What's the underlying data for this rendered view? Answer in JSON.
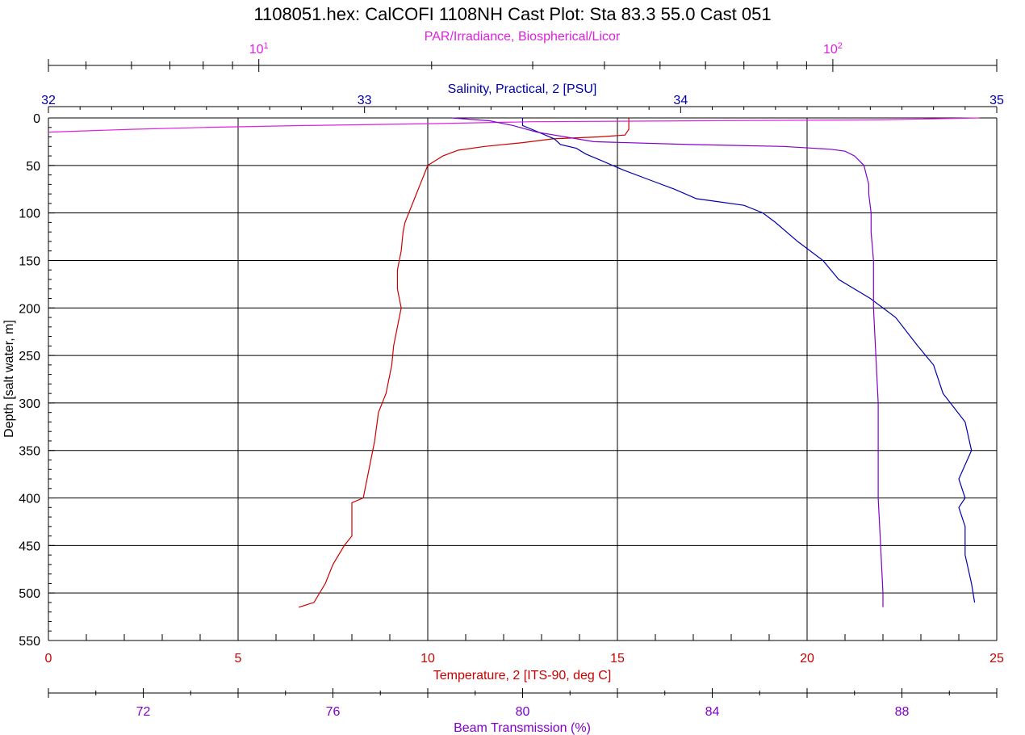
{
  "chart_data": {
    "type": "line",
    "title": "1108051.hex: CalCOFI 1108NH Cast Plot: Sta 83.3  55.0  Cast 051",
    "colors": {
      "temperature": "#cc0000",
      "salinity": "#0000aa",
      "par": "#e020e0",
      "beam": "#8000cc",
      "grid": "#000000"
    },
    "y_axis": {
      "label": "Depth [salt water, m]",
      "range": [
        0,
        550
      ],
      "ticks": [
        0,
        50,
        100,
        150,
        200,
        250,
        300,
        350,
        400,
        450,
        500,
        550
      ],
      "reversed": true
    },
    "par_axis": {
      "label": "PAR/Irradiance, Biospherical/Licor",
      "scale": "log",
      "range": [
        4.3,
        193
      ],
      "ticks": [
        {
          "value": 10,
          "base": "10",
          "exp": "1"
        },
        {
          "value": 100,
          "base": "10",
          "exp": "2"
        }
      ]
    },
    "salinity_axis": {
      "label": "Salinity, Practical, 2 [PSU]",
      "range": [
        32,
        35
      ],
      "ticks": [
        "32",
        "33",
        "34",
        "35"
      ]
    },
    "temperature_axis": {
      "label": "Temperature, 2 [ITS-90, deg C]",
      "range": [
        0,
        25
      ],
      "ticks": [
        "0",
        "5",
        "10",
        "15",
        "20",
        "25"
      ]
    },
    "beam_axis": {
      "label": "Beam Transmission (%)",
      "range": [
        70,
        90
      ],
      "ticks": [
        "72",
        "76",
        "80",
        "84",
        "88"
      ]
    },
    "grid": true,
    "series": [
      {
        "key": "temperature",
        "axis": "temperature_axis",
        "points": [
          [
            15.3,
            0
          ],
          [
            15.3,
            12
          ],
          [
            15.2,
            18
          ],
          [
            14.5,
            20
          ],
          [
            13.3,
            22
          ],
          [
            12.5,
            26
          ],
          [
            11.5,
            30
          ],
          [
            10.8,
            34
          ],
          [
            10.4,
            40
          ],
          [
            10.2,
            45
          ],
          [
            10.0,
            50
          ],
          [
            9.9,
            60
          ],
          [
            9.8,
            70
          ],
          [
            9.7,
            80
          ],
          [
            9.6,
            90
          ],
          [
            9.5,
            100
          ],
          [
            9.4,
            110
          ],
          [
            9.35,
            120
          ],
          [
            9.3,
            140
          ],
          [
            9.2,
            160
          ],
          [
            9.2,
            180
          ],
          [
            9.3,
            200
          ],
          [
            9.2,
            220
          ],
          [
            9.1,
            240
          ],
          [
            9.05,
            260
          ],
          [
            8.9,
            290
          ],
          [
            8.7,
            310
          ],
          [
            8.6,
            340
          ],
          [
            8.5,
            360
          ],
          [
            8.4,
            380
          ],
          [
            8.3,
            400
          ],
          [
            8.0,
            405
          ],
          [
            8.0,
            440
          ],
          [
            7.8,
            450
          ],
          [
            7.5,
            470
          ],
          [
            7.3,
            490
          ],
          [
            7.0,
            510
          ],
          [
            6.6,
            515
          ]
        ]
      },
      {
        "key": "salinity",
        "axis": "salinity_axis",
        "points": [
          [
            33.5,
            0
          ],
          [
            33.5,
            8
          ],
          [
            33.55,
            15
          ],
          [
            33.6,
            22
          ],
          [
            33.62,
            28
          ],
          [
            33.67,
            32
          ],
          [
            33.7,
            38
          ],
          [
            33.75,
            45
          ],
          [
            33.82,
            55
          ],
          [
            33.9,
            65
          ],
          [
            33.98,
            75
          ],
          [
            34.05,
            85
          ],
          [
            34.2,
            92
          ],
          [
            34.26,
            100
          ],
          [
            34.3,
            110
          ],
          [
            34.37,
            130
          ],
          [
            34.45,
            150
          ],
          [
            34.5,
            170
          ],
          [
            34.6,
            190
          ],
          [
            34.68,
            210
          ],
          [
            34.75,
            240
          ],
          [
            34.8,
            260
          ],
          [
            34.83,
            290
          ],
          [
            34.9,
            320
          ],
          [
            34.92,
            350
          ],
          [
            34.88,
            380
          ],
          [
            34.9,
            400
          ],
          [
            34.88,
            410
          ],
          [
            34.9,
            430
          ],
          [
            34.9,
            460
          ],
          [
            34.92,
            490
          ],
          [
            34.93,
            510
          ]
        ]
      },
      {
        "key": "par",
        "axis": "par_axis",
        "points": [
          [
            180,
            0
          ],
          [
            120,
            2
          ],
          [
            60,
            3
          ],
          [
            30,
            4
          ],
          [
            20,
            6
          ],
          [
            12,
            8
          ],
          [
            8,
            10
          ],
          [
            6,
            12
          ],
          [
            4.3,
            15
          ]
        ]
      },
      {
        "key": "beam",
        "axis": "beam_axis",
        "points": [
          [
            78.5,
            0
          ],
          [
            79.3,
            3
          ],
          [
            79.8,
            8
          ],
          [
            80.3,
            15
          ],
          [
            81.5,
            25
          ],
          [
            83.5,
            28
          ],
          [
            85.5,
            30
          ],
          [
            86.5,
            33
          ],
          [
            86.8,
            35
          ],
          [
            87.0,
            40
          ],
          [
            87.1,
            45
          ],
          [
            87.2,
            50
          ],
          [
            87.25,
            60
          ],
          [
            87.3,
            70
          ],
          [
            87.3,
            80
          ],
          [
            87.35,
            100
          ],
          [
            87.35,
            120
          ],
          [
            87.4,
            150
          ],
          [
            87.4,
            170
          ],
          [
            87.4,
            200
          ],
          [
            87.45,
            250
          ],
          [
            87.5,
            300
          ],
          [
            87.5,
            350
          ],
          [
            87.5,
            400
          ],
          [
            87.55,
            450
          ],
          [
            87.6,
            500
          ],
          [
            87.6,
            515
          ]
        ]
      }
    ]
  }
}
